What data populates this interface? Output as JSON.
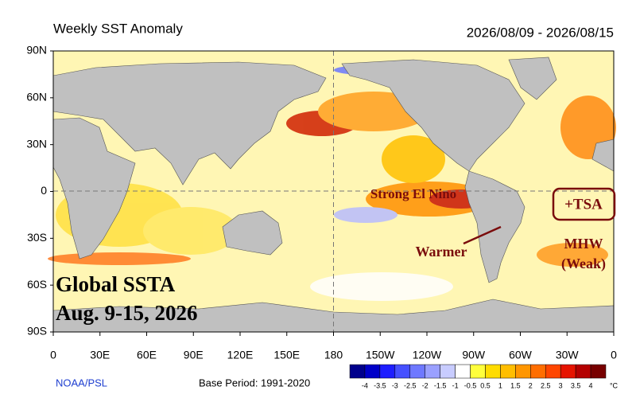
{
  "header": {
    "title": "Weekly SST Anomaly",
    "period": "2026/08/09 - 2026/08/15"
  },
  "map": {
    "lat_labels": [
      "90N",
      "60N",
      "30N",
      "0",
      "30S",
      "60S",
      "90S"
    ],
    "lon_labels": [
      "0",
      "30E",
      "60E",
      "90E",
      "120E",
      "150E",
      "180",
      "150W",
      "120W",
      "90W",
      "60W",
      "30W",
      "0"
    ],
    "annotations": {
      "el_nino": "Strong El Nino",
      "tsa": "+TSA",
      "warmer": "Warmer",
      "mhw": [
        "MHW",
        "(Weak)"
      ]
    },
    "overlay": [
      "Global SSTA",
      "Aug. 9-15, 2026"
    ]
  },
  "footer": {
    "source": "NOAA/PSL",
    "base_period": "Base Period: 1991-2020"
  },
  "colorbar": {
    "labels": [
      -4,
      -3.5,
      -3,
      -2.5,
      -2,
      -1.5,
      -1,
      -0.5,
      0.5,
      1,
      1.5,
      2,
      2.5,
      3,
      3.5,
      4
    ],
    "unit": "°C",
    "colors": [
      "#00008c",
      "#0000c8",
      "#1e1eff",
      "#4650ff",
      "#6e78ff",
      "#9aa0ff",
      "#c8ccff",
      "#ffffff",
      "#ffff3c",
      "#ffdc00",
      "#ffbe00",
      "#ff9600",
      "#ff6e00",
      "#ff4600",
      "#e61400",
      "#b40000",
      "#780000"
    ]
  }
}
